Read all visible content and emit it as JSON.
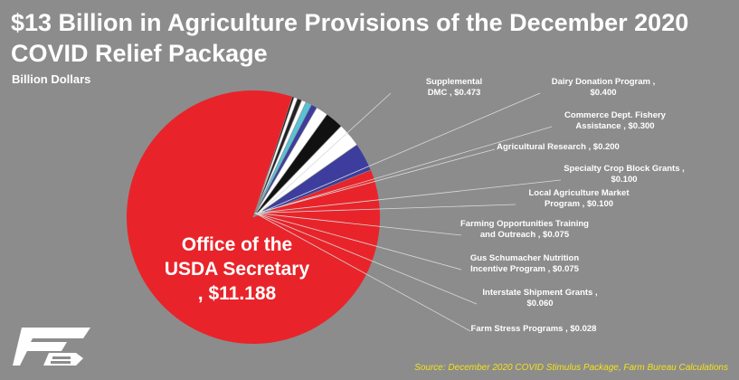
{
  "title": "$13 Billion in Agriculture Provisions of the December 2020 COVID Relief Package",
  "subtitle": "Billion Dollars",
  "source": "Source: December 2020 COVID Stimulus Package, Farm Bureau Calculations",
  "colors": {
    "background": "#8c8c8c",
    "usda": "#e8242a",
    "supplemental": "#3d3d9e",
    "dairy": "#ffffff",
    "fishery": "#111111",
    "research": "#ffffff",
    "specialty": "#3d3d9e",
    "local": "#57c3d6",
    "farming": "#ffffff",
    "gus": "#222222",
    "interstate": "#ffffff",
    "stress": "#111111",
    "leader": "#d9d9d9",
    "source": "#f2e21a"
  },
  "logo": {
    "icon": "farm-bureau-logo-icon"
  },
  "chart_data": {
    "type": "pie",
    "unit": "Billion Dollars",
    "slices": [
      {
        "lines": [
          "Office of the",
          "USDA Secretary",
          ",  $11.188"
        ],
        "value": 11.188,
        "color": "#e8242a"
      },
      {
        "lines": [
          "Supplemental",
          "DMC ,  $0.473"
        ],
        "value": 0.473,
        "color": "#3d3d9e"
      },
      {
        "lines": [
          "Dairy Donation Program ,",
          "$0.400"
        ],
        "value": 0.4,
        "color": "#ffffff"
      },
      {
        "lines": [
          "Commerce Dept. Fishery",
          "Assistance ,  $0.300"
        ],
        "value": 0.3,
        "color": "#111111"
      },
      {
        "lines": [
          "Agricultural Research ,  $0.200"
        ],
        "value": 0.2,
        "color": "#ffffff"
      },
      {
        "lines": [
          "Specialty Crop Block Grants ,",
          "$0.100"
        ],
        "value": 0.1,
        "color": "#3d3d9e"
      },
      {
        "lines": [
          "Local Agriculture Market",
          "Program ,  $0.100"
        ],
        "value": 0.1,
        "color": "#57c3d6"
      },
      {
        "lines": [
          "Farming Opportunities Training",
          "and Outreach ,  $0.075"
        ],
        "value": 0.075,
        "color": "#ffffff"
      },
      {
        "lines": [
          "Gus Schumacher Nutrition",
          "Incentive Program ,  $0.075"
        ],
        "value": 0.075,
        "color": "#222222"
      },
      {
        "lines": [
          "Interstate Shipment Grants ,",
          "$0.060"
        ],
        "value": 0.06,
        "color": "#ffffff"
      },
      {
        "lines": [
          "Farm Stress Programs ,  $0.028"
        ],
        "value": 0.028,
        "color": "#111111"
      }
    ]
  }
}
